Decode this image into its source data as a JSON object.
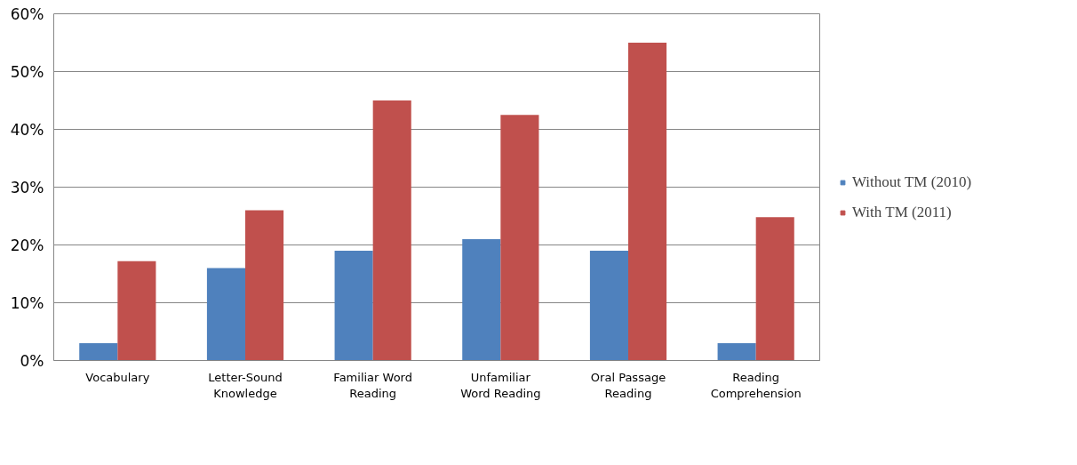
{
  "chart_data": {
    "type": "bar",
    "categories": [
      "Vocabulary",
      "Letter-Sound Knowledge",
      "Familiar Word Reading",
      "Unfamiliar Word Reading",
      "Oral Passage Reading",
      "Reading Comprehension"
    ],
    "series": [
      {
        "name": "Without TM (2010)",
        "color": "#4f81bd",
        "values": [
          3,
          16,
          19,
          21,
          19,
          3
        ]
      },
      {
        "name": "With TM (2011)",
        "color": "#c0504d",
        "values": [
          17.2,
          26,
          45,
          42.5,
          55,
          24.8
        ]
      }
    ],
    "ylim": [
      0,
      60
    ],
    "yticks": [
      {
        "value": 0,
        "label": "0%"
      },
      {
        "value": 10,
        "label": "10%"
      },
      {
        "value": 20,
        "label": "20%"
      },
      {
        "value": 30,
        "label": "30%"
      },
      {
        "value": 40,
        "label": "40%"
      },
      {
        "value": 50,
        "label": "50%"
      },
      {
        "value": 60,
        "label": "60%"
      }
    ],
    "grid": "y",
    "legend": "right"
  }
}
